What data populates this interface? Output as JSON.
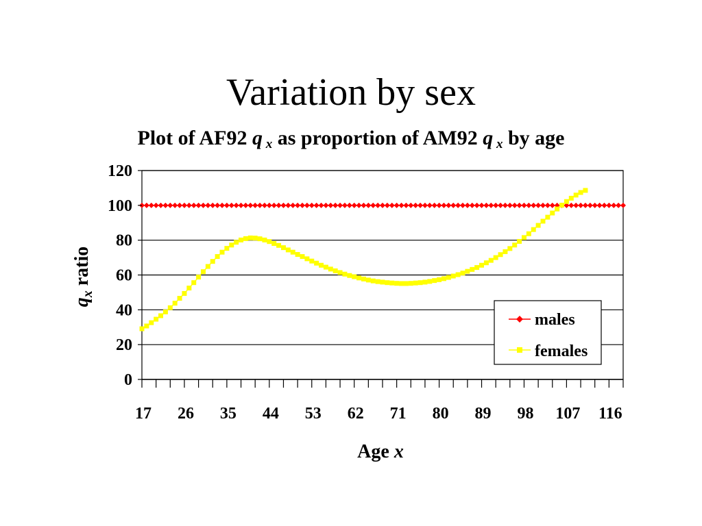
{
  "slide": {
    "title": "Variation by sex"
  },
  "chart_data": {
    "type": "line",
    "title_parts": [
      "Plot of AF92 ",
      "q",
      " x",
      " as proportion of AM92 ",
      "q",
      " x",
      "  by age"
    ],
    "xlabel_parts": [
      "Age ",
      "x"
    ],
    "ylabel_parts": [
      "q",
      "x",
      " ratio"
    ],
    "x_tick_labels": [
      "17",
      "26",
      "35",
      "44",
      "53",
      "62",
      "71",
      "80",
      "89",
      "98",
      "107",
      "116"
    ],
    "x_tick_values": [
      17,
      26,
      35,
      44,
      53,
      62,
      71,
      80,
      89,
      98,
      107,
      116
    ],
    "xlim": [
      17,
      119
    ],
    "ylim": [
      0,
      120
    ],
    "y_ticks": [
      0,
      20,
      40,
      60,
      80,
      100,
      120
    ],
    "y_tick_labels": [
      "0",
      "20",
      "40",
      "60",
      "80",
      "100",
      "120"
    ],
    "grid": "horizontal",
    "legend_position": "bottom-right",
    "series": [
      {
        "name": "males",
        "color": "#ff0000",
        "marker": "diamond",
        "x_start": 17,
        "x_step": 1,
        "values": [
          100,
          100,
          100,
          100,
          100,
          100,
          100,
          100,
          100,
          100,
          100,
          100,
          100,
          100,
          100,
          100,
          100,
          100,
          100,
          100,
          100,
          100,
          100,
          100,
          100,
          100,
          100,
          100,
          100,
          100,
          100,
          100,
          100,
          100,
          100,
          100,
          100,
          100,
          100,
          100,
          100,
          100,
          100,
          100,
          100,
          100,
          100,
          100,
          100,
          100,
          100,
          100,
          100,
          100,
          100,
          100,
          100,
          100,
          100,
          100,
          100,
          100,
          100,
          100,
          100,
          100,
          100,
          100,
          100,
          100,
          100,
          100,
          100,
          100,
          100,
          100,
          100,
          100,
          100,
          100,
          100,
          100,
          100,
          100,
          100,
          100,
          100,
          100,
          100,
          100,
          100,
          100,
          100,
          100,
          100,
          100,
          100,
          100,
          100,
          100,
          100,
          100,
          100
        ]
      },
      {
        "name": "females",
        "color": "#ffff00",
        "marker": "square",
        "x_start": 17,
        "x_step": 1,
        "values": [
          29.1,
          30.7,
          32.6,
          34.6,
          36.6,
          38.8,
          41.2,
          43.8,
          46.6,
          49.4,
          52.5,
          55.6,
          58.8,
          61.9,
          64.9,
          67.8,
          70.6,
          73.1,
          75.3,
          77.2,
          78.8,
          80.1,
          80.9,
          81.3,
          81.2,
          80.8,
          80.1,
          79.2,
          78.1,
          77.0,
          75.7,
          74.4,
          73.1,
          71.8,
          70.6,
          69.3,
          68.0,
          66.8,
          65.6,
          64.5,
          63.4,
          62.4,
          61.4,
          60.5,
          59.7,
          59.0,
          58.3,
          57.7,
          57.1,
          56.6,
          56.2,
          55.9,
          55.6,
          55.4,
          55.2,
          55.1,
          55.1,
          55.2,
          55.4,
          55.6,
          55.9,
          56.3,
          56.8,
          57.3,
          57.9,
          58.6,
          59.4,
          60.2,
          61.1,
          62.1,
          63.2,
          64.3,
          65.6,
          67.0,
          68.4,
          70.0,
          71.7,
          73.4,
          75.2,
          77.2,
          79.3,
          81.5,
          83.7,
          86.1,
          88.5,
          90.9,
          93.2,
          95.6,
          97.9,
          100.1,
          102.2,
          104.1,
          105.9,
          107.4,
          108.6
        ]
      }
    ]
  }
}
